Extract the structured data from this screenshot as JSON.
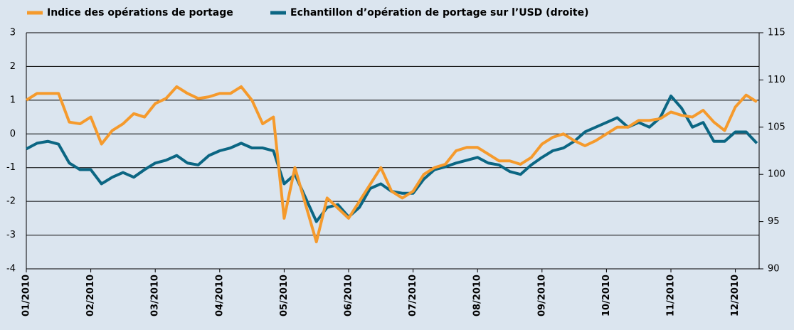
{
  "chart_data": {
    "type": "line",
    "categories": [
      "01/2010",
      "02/2010",
      "03/2010",
      "04/2010",
      "05/2010",
      "06/2010",
      "07/2010",
      "08/2010",
      "09/2010",
      "10/2010",
      "11/2010",
      "12/2010"
    ],
    "series": [
      {
        "name": "Indice des opérations de portage",
        "color": "#f59a2c",
        "axis": "y",
        "values": [
          [
            1.0,
            1.2,
            1.2,
            1.2,
            0.35,
            0.3
          ],
          [
            0.5,
            -0.3,
            0.1,
            0.3,
            0.6,
            0.5
          ],
          [
            0.9,
            1.05,
            1.4,
            1.2,
            1.05,
            1.1
          ],
          [
            1.2,
            1.2,
            1.4,
            1.0,
            0.3,
            0.5
          ],
          [
            -2.5,
            -1.0,
            -2.1,
            -3.2,
            -1.9,
            -2.2
          ],
          [
            -2.5,
            -2.0,
            -1.5,
            -1.0,
            -1.7,
            -1.9
          ],
          [
            -1.7,
            -1.2,
            -1.0,
            -0.9,
            -0.5,
            -0.4
          ],
          [
            -0.4,
            -0.6,
            -0.8,
            -0.8,
            -0.9,
            -0.7
          ],
          [
            -0.3,
            -0.1,
            0.0,
            -0.2,
            -0.35,
            -0.2
          ],
          [
            0.0,
            0.2,
            0.2,
            0.4,
            0.4,
            0.45
          ],
          [
            0.65,
            0.55,
            0.5,
            0.7,
            0.35,
            0.1
          ],
          [
            0.8,
            1.15,
            0.95
          ]
        ]
      },
      {
        "name": "Echantillon d’opération de portage sur l’USD (droite)",
        "color": "#0b6683",
        "axis": "y2",
        "values": [
          [
            102.7,
            103.3,
            103.5,
            103.2,
            101.2,
            100.5
          ],
          [
            100.5,
            99.0,
            99.7,
            100.2,
            99.7,
            100.5
          ],
          [
            101.2,
            101.5,
            102.0,
            101.2,
            101.0,
            102.0
          ],
          [
            102.5,
            102.8,
            103.3,
            102.8,
            102.8,
            102.5
          ],
          [
            99.0,
            100.0,
            97.5,
            95.0,
            96.5,
            96.8
          ],
          [
            95.5,
            96.5,
            98.5,
            99.0,
            98.2,
            98.0
          ],
          [
            98.0,
            99.5,
            100.5,
            100.8,
            101.2,
            101.5
          ],
          [
            101.8,
            101.2,
            101.0,
            100.3,
            100.0,
            101.0
          ],
          [
            101.8,
            102.5,
            102.8,
            103.5,
            104.5,
            105.0
          ],
          [
            105.5,
            106.0,
            105.0,
            105.5,
            105.0,
            106.0
          ],
          [
            108.3,
            107.0,
            105.0,
            105.5,
            103.5,
            103.5
          ],
          [
            104.5,
            104.5,
            103.3
          ]
        ]
      }
    ],
    "ylim": [
      -4,
      3
    ],
    "yticks": [
      -4,
      -3,
      -2,
      -1,
      0,
      1,
      2,
      3
    ],
    "y2lim": [
      90,
      115
    ],
    "y2ticks": [
      90,
      95,
      100,
      105,
      110,
      115
    ],
    "grid": true,
    "legend": "top"
  }
}
